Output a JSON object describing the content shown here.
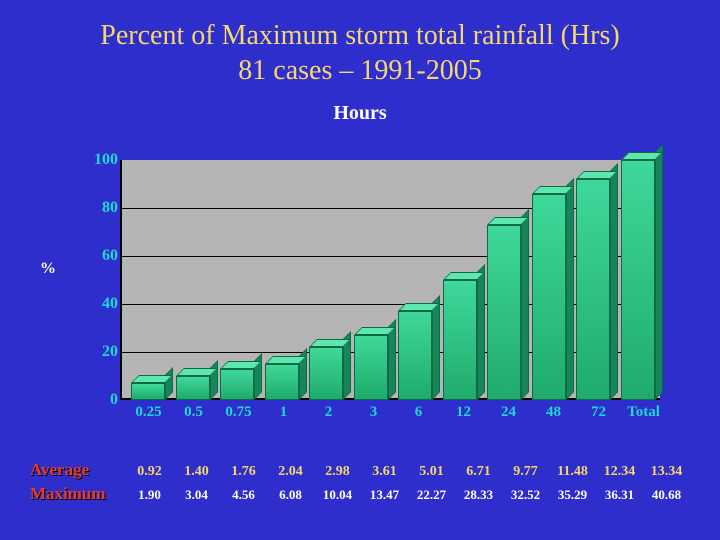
{
  "title_line1": "Percent of Maximum storm total rainfall (Hrs)",
  "title_line2": "81 cases – 1991-2005",
  "chart": {
    "type": "bar",
    "title": "Hours",
    "ylabel": "%",
    "ylim": [
      0,
      100
    ],
    "ytick_step": 20,
    "yticks": [
      0,
      20,
      40,
      60,
      80,
      100
    ],
    "categories": [
      "0.25",
      "0.5",
      "0.75",
      "1",
      "2",
      "3",
      "6",
      "12",
      "24",
      "48",
      "72",
      "Total"
    ],
    "values": [
      7,
      10,
      13,
      15,
      22,
      27,
      37,
      50,
      73,
      86,
      92,
      100
    ],
    "bar_color_top": "#5ee8b0",
    "bar_color_front": "#2fc085",
    "bar_color_side": "#17855a",
    "bar_border": "#0a6b44",
    "plot_background": "#b5b5b5",
    "grid_color": "#000000",
    "tick_color": "#1fd8d0",
    "tick_fontsize": 16,
    "tick_fontweight": "bold"
  },
  "rows": {
    "average": {
      "label": "Average",
      "values": [
        "0.92",
        "1.40",
        "1.76",
        "2.04",
        "2.98",
        "3.61",
        "5.01",
        "6.71",
        "9.77",
        "11.48",
        "12.34",
        "13.34"
      ],
      "color": "#f5d76e"
    },
    "maximum": {
      "label": "Maximum",
      "values": [
        "1.90",
        "3.04",
        "4.56",
        "6.08",
        "10.04",
        "13.47",
        "22.27",
        "28.33",
        "32.52",
        "35.29",
        "36.31",
        "40.68"
      ],
      "color": "#ffffff"
    }
  },
  "colors": {
    "slide_background": "#2e2ecd",
    "title_color": "#f5d76e",
    "chart_title_color": "#ffffff",
    "row_label_color": "#e63a2a"
  },
  "fonts": {
    "title_size_pt": 28,
    "chart_title_size_pt": 20,
    "row_label_size_pt": 17
  }
}
